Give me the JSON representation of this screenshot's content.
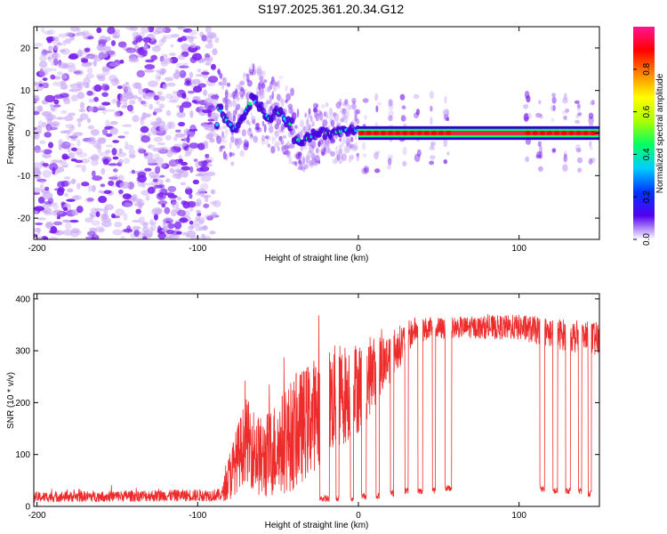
{
  "title": "S197.2025.361.20.34.G12",
  "colors": {
    "snr_line": "#ee2b2b",
    "carrier_band": "#ee2244",
    "scatter_main": "#7a1ff0",
    "scatter_light": "#c9a8f5"
  },
  "chart_data": [
    {
      "type": "heatmap",
      "xlabel": "Height of straight line (km)",
      "ylabel": "Frequency (Hz)",
      "xlim": [
        -202,
        150
      ],
      "ylim": [
        -25,
        25
      ],
      "xticks": [
        -200,
        -100,
        0,
        100
      ],
      "xtick_labels": [
        "-200",
        "-100",
        "0",
        "100"
      ],
      "yticks": [
        -20,
        -10,
        0,
        10,
        20
      ],
      "ytick_labels": [
        "-20",
        "-10",
        "0",
        "10",
        "20"
      ],
      "colorbar": {
        "label": "Normalized spectral amplitude",
        "range": [
          0,
          1
        ],
        "ticks": [
          0,
          0.2,
          0.4,
          0.6,
          0.8
        ],
        "tick_labels": [
          "0.0",
          "0.2",
          "0.4",
          "0.6",
          "0.8"
        ],
        "colormap": [
          "#ffffff",
          "#5500ee",
          "#0033ff",
          "#00ccff",
          "#00ff66",
          "#aaff00",
          "#ffff00",
          "#ff8800",
          "#ff0000",
          "#ff1493"
        ]
      },
      "regions": [
        {
          "x_range": [
            -202,
            -88
          ],
          "description": "noise",
          "freq_spread": [
            -25,
            25
          ]
        },
        {
          "x_range": [
            -88,
            -40
          ],
          "description": "wandering signal",
          "freq_center_points": [
            [
              -87,
              6
            ],
            [
              -82,
              3
            ],
            [
              -77,
              1
            ],
            [
              -72,
              4
            ],
            [
              -66,
              8
            ],
            [
              -60,
              6
            ],
            [
              -55,
              3
            ],
            [
              -50,
              5
            ],
            [
              -45,
              3
            ],
            [
              -42,
              2
            ]
          ]
        },
        {
          "x_range": [
            -40,
            0
          ],
          "description": "converging",
          "freq_center_points": [
            [
              -40,
              -1
            ],
            [
              -36,
              -2
            ],
            [
              -30,
              -1
            ],
            [
              -24,
              0
            ],
            [
              -18,
              0
            ],
            [
              -10,
              0.5
            ],
            [
              -4,
              1
            ],
            [
              0,
              0.5
            ]
          ]
        },
        {
          "x_range": [
            0,
            150
          ],
          "description": "stable carrier",
          "freq": 0
        }
      ]
    },
    {
      "type": "line",
      "xlabel": "Height of straight line (km)",
      "ylabel": "SNR (10 * v/v)",
      "xlim": [
        -202,
        150
      ],
      "ylim": [
        0,
        410
      ],
      "xticks": [
        -200,
        -100,
        0,
        100
      ],
      "xtick_labels": [
        "-200",
        "-100",
        "0",
        "100"
      ],
      "yticks": [
        0,
        100,
        200,
        300,
        400
      ],
      "ytick_labels": [
        "0",
        "100",
        "200",
        "300",
        "400"
      ],
      "series": [
        {
          "name": "SNR",
          "envelope": [
            {
              "x": -202,
              "base": 18,
              "spread": 10
            },
            {
              "x": -85,
              "base": 22,
              "spread": 12
            },
            {
              "x": -80,
              "base": 60,
              "spread": 50
            },
            {
              "x": -70,
              "base": 130,
              "spread": 80
            },
            {
              "x": -60,
              "base": 90,
              "spread": 80
            },
            {
              "x": -40,
              "base": 140,
              "spread": 110
            },
            {
              "x": -20,
              "base": 200,
              "spread": 110
            },
            {
              "x": 0,
              "base": 230,
              "spread": 90
            },
            {
              "x": 20,
              "base": 290,
              "spread": 50
            },
            {
              "x": 35,
              "base": 340,
              "spread": 25
            },
            {
              "x": 60,
              "base": 345,
              "spread": 20
            },
            {
              "x": 100,
              "base": 345,
              "spread": 25
            },
            {
              "x": 150,
              "base": 320,
              "spread": 35
            }
          ],
          "dropouts": [
            {
              "x_range": [
                -24,
                -18
              ],
              "level": 15
            },
            {
              "x_range": [
                -14,
                -12
              ],
              "level": 15
            },
            {
              "x_range": [
                -5,
                -3
              ],
              "level": 15
            },
            {
              "x_range": [
                2,
                5
              ],
              "level": 20
            },
            {
              "x_range": [
                11,
                13
              ],
              "level": 20
            },
            {
              "x_range": [
                20,
                22
              ],
              "level": 25
            },
            {
              "x_range": [
                29,
                31
              ],
              "level": 30
            },
            {
              "x_range": [
                37,
                40
              ],
              "level": 30
            },
            {
              "x_range": [
                46,
                48
              ],
              "level": 30
            },
            {
              "x_range": [
                54,
                58
              ],
              "level": 35
            },
            {
              "x_range": [
                113,
                116
              ],
              "level": 35
            },
            {
              "x_range": [
                121,
                124
              ],
              "level": 30
            },
            {
              "x_range": [
                129,
                132
              ],
              "level": 30
            },
            {
              "x_range": [
                137,
                139
              ],
              "level": 30
            },
            {
              "x_range": [
                143,
                145
              ],
              "level": 25
            }
          ]
        }
      ]
    }
  ]
}
